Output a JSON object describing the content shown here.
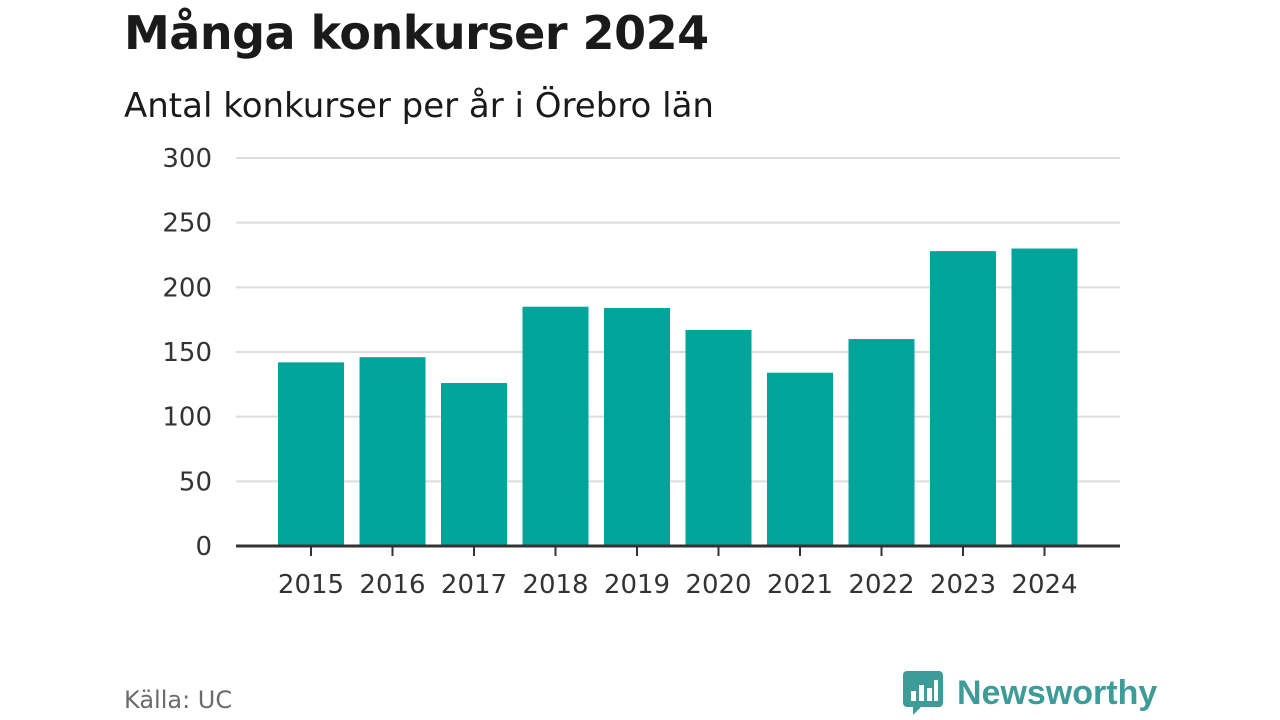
{
  "header": {
    "title": "Många konkurser 2024",
    "subtitle": "Antal konkurser per år i Örebro län"
  },
  "footer": {
    "source": "Källa: UC",
    "brand": "Newsworthy",
    "brand_icon": "bar-chart-speech-bubble-icon",
    "brand_color": "#3d9c97"
  },
  "chart_data": {
    "type": "bar",
    "categories": [
      "2015",
      "2016",
      "2017",
      "2018",
      "2019",
      "2020",
      "2021",
      "2022",
      "2023",
      "2024"
    ],
    "values": [
      142,
      146,
      126,
      185,
      184,
      167,
      134,
      160,
      228,
      230
    ],
    "ylim": [
      0,
      300
    ],
    "yticks": [
      0,
      50,
      100,
      150,
      200,
      250,
      300
    ],
    "grid": true,
    "bar_color": "#00a499",
    "grid_color": "#dddddd",
    "axis_color": "#333333"
  }
}
